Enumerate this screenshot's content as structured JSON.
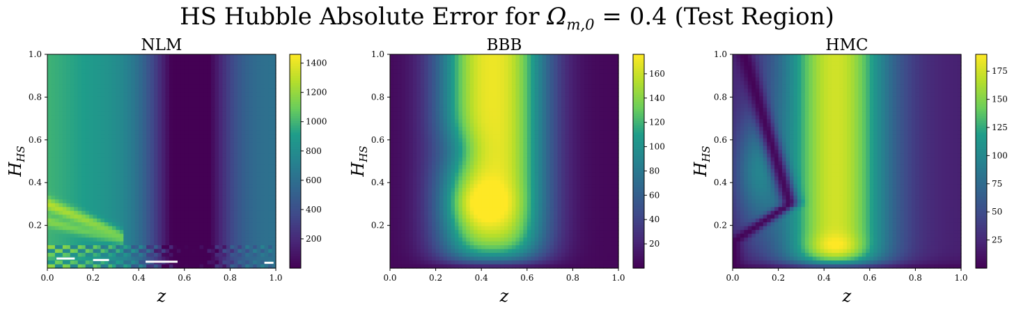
{
  "figure": {
    "title_prefix": "HS Hubble Absolute Error for ",
    "title_symbol": "Ω",
    "title_symbol_sub": "m,0",
    "title_suffix": " = 0.4 (Test Region)"
  },
  "colormap": "viridis",
  "colors": {
    "viridis": [
      "#440154",
      "#482777",
      "#3f4a8a",
      "#31678e",
      "#26838f",
      "#1f9d8a",
      "#6cce5a",
      "#b6de2b",
      "#fee825"
    ],
    "missing_marks": "#ffffff"
  },
  "chart_data": [
    {
      "type": "heatmap",
      "title": "NLM",
      "xlabel": "z",
      "ylabel_main": "H",
      "ylabel_sub": "HS",
      "xlim": [
        0.0,
        1.0
      ],
      "ylim": [
        0.0,
        1.0
      ],
      "xticks": [
        "0.0",
        "0.2",
        "0.4",
        "0.6",
        "0.8",
        "1.0"
      ],
      "yticks": [
        "0.2",
        "0.4",
        "0.6",
        "0.8",
        "1.0"
      ],
      "colorbar": {
        "min": 0,
        "max": 1460,
        "ticks": [
          "200",
          "400",
          "600",
          "800",
          "1000",
          "1200",
          "1400"
        ],
        "tick_values": [
          200,
          400,
          600,
          800,
          1000,
          1200,
          1400
        ]
      },
      "description_of_field": "absolute error highest at low z (~1000) decreasing with z, minimum near z~0.6, rising again (~350) toward z=1; bright wedge streaks near z<0.3, H_HS<0.35; noisy band below H_HS~0.1",
      "field_samples": {
        "z": [
          0.0,
          0.1,
          0.2,
          0.3,
          0.4,
          0.5,
          0.6,
          0.7,
          0.8,
          0.9,
          1.0
        ],
        "value_at_H_0.6": [
          1000,
          900,
          800,
          680,
          520,
          320,
          60,
          120,
          260,
          320,
          360
        ]
      },
      "missing_segments": [
        {
          "z": [
            0.04,
            0.12
          ],
          "H": 0.045
        },
        {
          "z": [
            0.2,
            0.27
          ],
          "H": 0.038
        },
        {
          "z": [
            0.43,
            0.57
          ],
          "H": 0.03
        },
        {
          "z": [
            0.95,
            0.99
          ],
          "H": 0.025
        }
      ]
    },
    {
      "type": "heatmap",
      "title": "BBB",
      "xlabel": "z",
      "ylabel_main": "H",
      "ylabel_sub": "HS",
      "xlim": [
        0.0,
        1.0
      ],
      "ylim": [
        0.0,
        1.0
      ],
      "xticks": [
        "0.0",
        "0.2",
        "0.4",
        "0.6",
        "0.8",
        "1.0"
      ],
      "yticks": [
        "0.2",
        "0.4",
        "0.6",
        "0.8",
        "1.0"
      ],
      "colorbar": {
        "min": 0,
        "max": 176,
        "ticks": [
          "20",
          "40",
          "60",
          "80",
          "100",
          "120",
          "140",
          "160"
        ],
        "tick_values": [
          20,
          40,
          60,
          80,
          100,
          120,
          140,
          160
        ]
      },
      "description_of_field": "broad maximum (~170) centred near z~0.45 spanning most H_HS, with a bright lobe near z~0.4, H_HS~0.3; values fall to near 0 toward z=0, z=1 and H_HS=0"
    },
    {
      "type": "heatmap",
      "title": "HMC",
      "xlabel": "z",
      "ylabel_main": "H",
      "ylabel_sub": "HS",
      "xlim": [
        0.0,
        1.0
      ],
      "ylim": [
        0.0,
        1.0
      ],
      "xticks": [
        "0.0",
        "0.2",
        "0.4",
        "0.6",
        "0.8",
        "1.0"
      ],
      "yticks": [
        "0.2",
        "0.4",
        "0.6",
        "0.8",
        "1.0"
      ],
      "colorbar": {
        "min": 0,
        "max": 190,
        "ticks": [
          "25",
          "50",
          "75",
          "100",
          "125",
          "150",
          "175"
        ],
        "tick_values": [
          25,
          50,
          75,
          100,
          125,
          150,
          175
        ]
      },
      "description_of_field": "vertical bright band (~175) near z~0.45 with hotspot near H_HS~0.1; dark curved valley from z~0.05 at top through z~0.25 at H_HS~0.3 to z~0 near H_HS~0.12; moderate (~60) region at z~0.1, H_HS~0.4"
    }
  ]
}
